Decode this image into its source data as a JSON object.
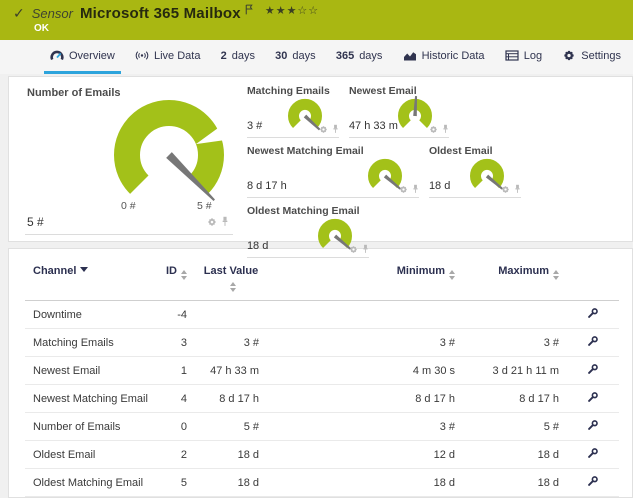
{
  "colors": {
    "banner_green": "#a9b712",
    "gauge_green": "#a3c119",
    "active_tab_blue": "#2da4dc",
    "header_navy": "#2c3050",
    "needle_gray": "#777777"
  },
  "header": {
    "status_icon": "check",
    "type_label": "Sensor",
    "title": "Microsoft 365 Mailbox",
    "status": "OK",
    "stars_filled": 3,
    "stars_total": 5
  },
  "tabs": [
    {
      "icon": "gauge-icon",
      "label": "Overview",
      "active": true
    },
    {
      "icon": "broadcast-icon",
      "label": "Live Data"
    },
    {
      "num": "2",
      "label": "days"
    },
    {
      "num": "30",
      "label": "days"
    },
    {
      "num": "365",
      "label": "days"
    },
    {
      "icon": "chart-icon",
      "label": "Historic Data"
    },
    {
      "icon": "log-icon",
      "label": "Log"
    },
    {
      "icon": "gear-icon",
      "label": "Settings"
    }
  ],
  "gauges": {
    "main": {
      "title": "Number of Emails",
      "value": "5 #",
      "scale_min": "0 #",
      "scale_max": "5 #",
      "needle_deg": 45,
      "marker_deg": -22
    },
    "small": [
      {
        "title": "Matching Emails",
        "value": "3 #",
        "needle_deg": 43
      },
      {
        "title": "Newest Email",
        "value": "47 h 33 m",
        "needle_deg": -87
      },
      {
        "title": "Newest Matching Email",
        "value": "8 d 17 h",
        "needle_deg": 40
      },
      {
        "title": "Oldest Email",
        "value": "18 d",
        "needle_deg": 40
      },
      {
        "title": "Oldest Matching Email",
        "value": "18 d",
        "needle_deg": 40
      }
    ]
  },
  "table": {
    "columns": [
      "Channel",
      "ID",
      "Last Value",
      "Minimum",
      "Maximum"
    ],
    "rows": [
      {
        "channel": "Downtime",
        "id": "-4",
        "last": "",
        "min": "",
        "max": ""
      },
      {
        "channel": "Matching Emails",
        "id": "3",
        "last": "3 #",
        "min": "3 #",
        "max": "3 #"
      },
      {
        "channel": "Newest Email",
        "id": "1",
        "last": "47 h 33 m",
        "min": "4 m 30 s",
        "max": "3 d 21 h 11 m"
      },
      {
        "channel": "Newest Matching Email",
        "id": "4",
        "last": "8 d 17 h",
        "min": "8 d 17 h",
        "max": "8 d 17 h"
      },
      {
        "channel": "Number of Emails",
        "id": "0",
        "last": "5 #",
        "min": "3 #",
        "max": "5 #"
      },
      {
        "channel": "Oldest Email",
        "id": "2",
        "last": "18 d",
        "min": "12 d",
        "max": "18 d"
      },
      {
        "channel": "Oldest Matching Email",
        "id": "5",
        "last": "18 d",
        "min": "18 d",
        "max": "18 d"
      }
    ]
  }
}
